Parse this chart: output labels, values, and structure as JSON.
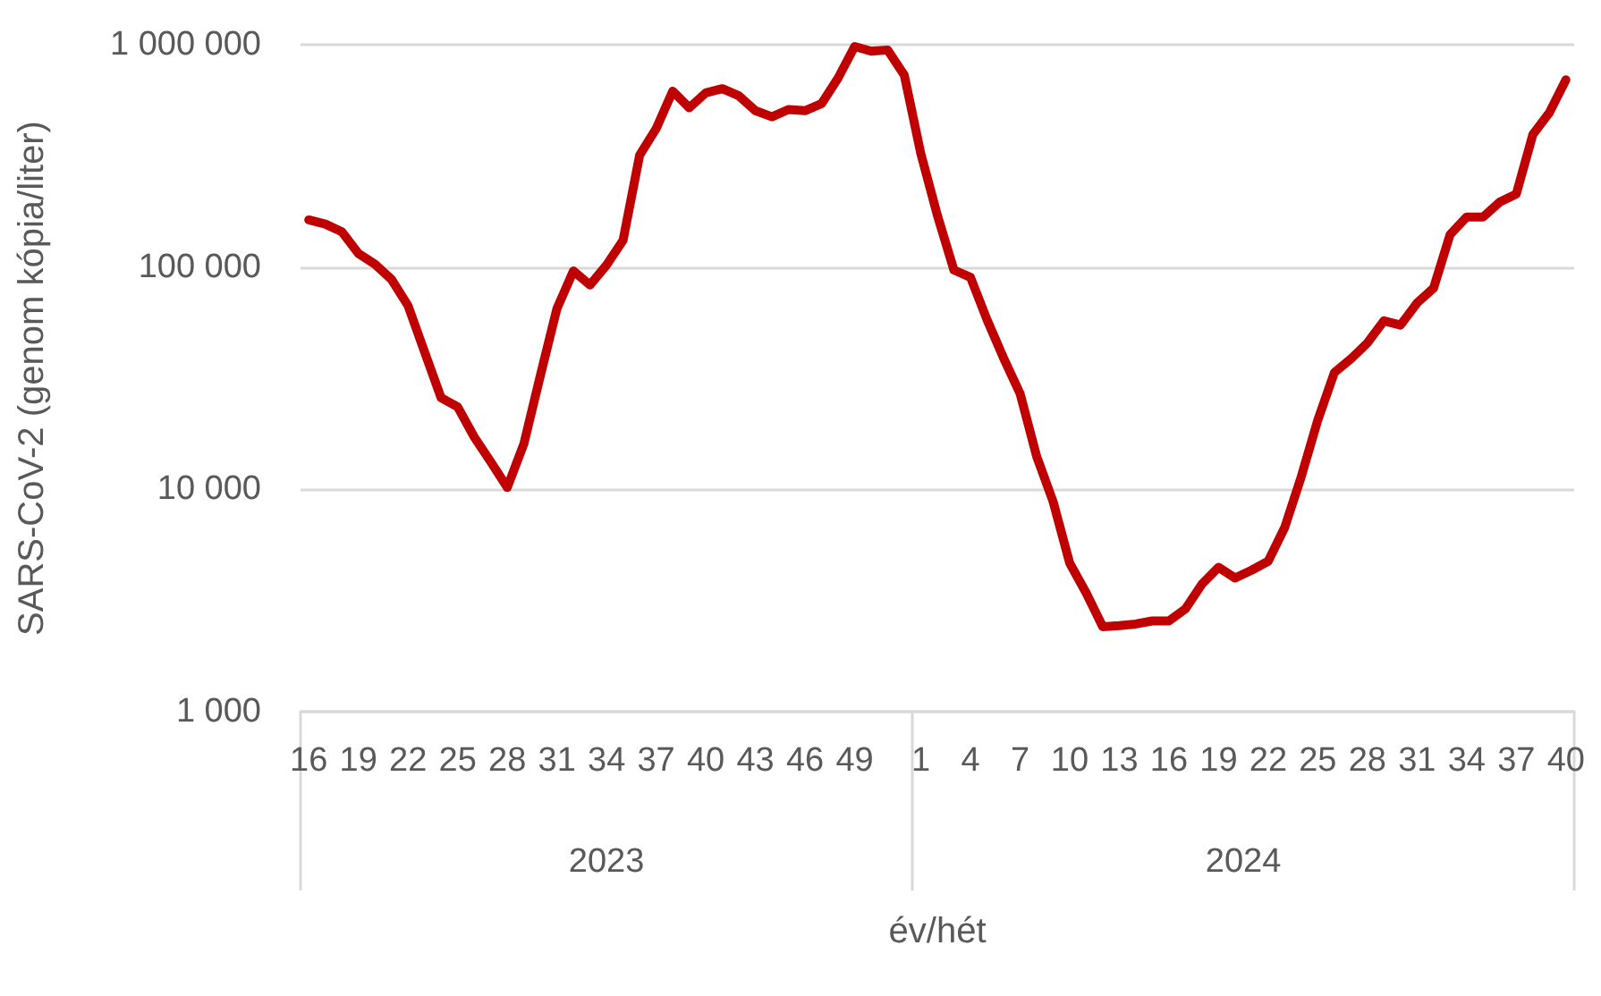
{
  "chart_data": {
    "type": "line",
    "xlabel": "év/hét",
    "ylabel": "SARS-CoV-2 (genom kópia/liter)",
    "categories": [
      "16",
      null,
      null,
      "19",
      null,
      null,
      "22",
      null,
      null,
      "25",
      null,
      null,
      "28",
      null,
      null,
      "31",
      null,
      null,
      "34",
      null,
      null,
      "37",
      null,
      null,
      "40",
      null,
      null,
      "43",
      null,
      null,
      "46",
      null,
      null,
      "49",
      null,
      null,
      null,
      "1",
      null,
      null,
      "4",
      null,
      null,
      "7",
      null,
      null,
      "10",
      null,
      null,
      "13",
      null,
      null,
      "16",
      null,
      null,
      "19",
      null,
      null,
      "22",
      null,
      null,
      "25",
      null,
      null,
      "28",
      null,
      null,
      "31",
      null,
      null,
      "34",
      null,
      null,
      "37",
      null,
      null,
      "40"
    ],
    "series": [
      {
        "color": "#c00000",
        "values": [
          163000,
          156000,
          144000,
          115000,
          103000,
          88000,
          67000,
          41500,
          25800,
          23500,
          17200,
          13300,
          10200,
          16000,
          32500,
          65000,
          96000,
          83000,
          102000,
          132000,
          318000,
          419000,
          618000,
          520000,
          607000,
          634000,
          589000,
          505000,
          474000,
          511000,
          505000,
          543000,
          708000,
          982000,
          935000,
          947000,
          730000,
          324000,
          171000,
          97000,
          90000,
          58000,
          39000,
          27000,
          14100,
          8800,
          4660,
          3420,
          2410,
          2440,
          2480,
          2560,
          2560,
          2900,
          3750,
          4460,
          3990,
          4330,
          4750,
          6740,
          11400,
          20500,
          33500,
          38600,
          45600,
          57300,
          54800,
          68900,
          80400,
          140000,
          168000,
          168000,
          196000,
          213000,
          394000,
          495000,
          695000
        ]
      }
    ],
    "ylim": [
      1000,
      1000000
    ],
    "yticks": [
      {
        "value": 1000,
        "label": "1 000"
      },
      {
        "value": 10000,
        "label": "10 000"
      },
      {
        "value": 100000,
        "label": "100 000"
      },
      {
        "value": 1000000,
        "label": "1 000 000"
      }
    ],
    "log": "y",
    "grid": "y",
    "marker": "none",
    "line_style": "solid",
    "annotations": [
      "2023",
      "2024"
    ]
  }
}
